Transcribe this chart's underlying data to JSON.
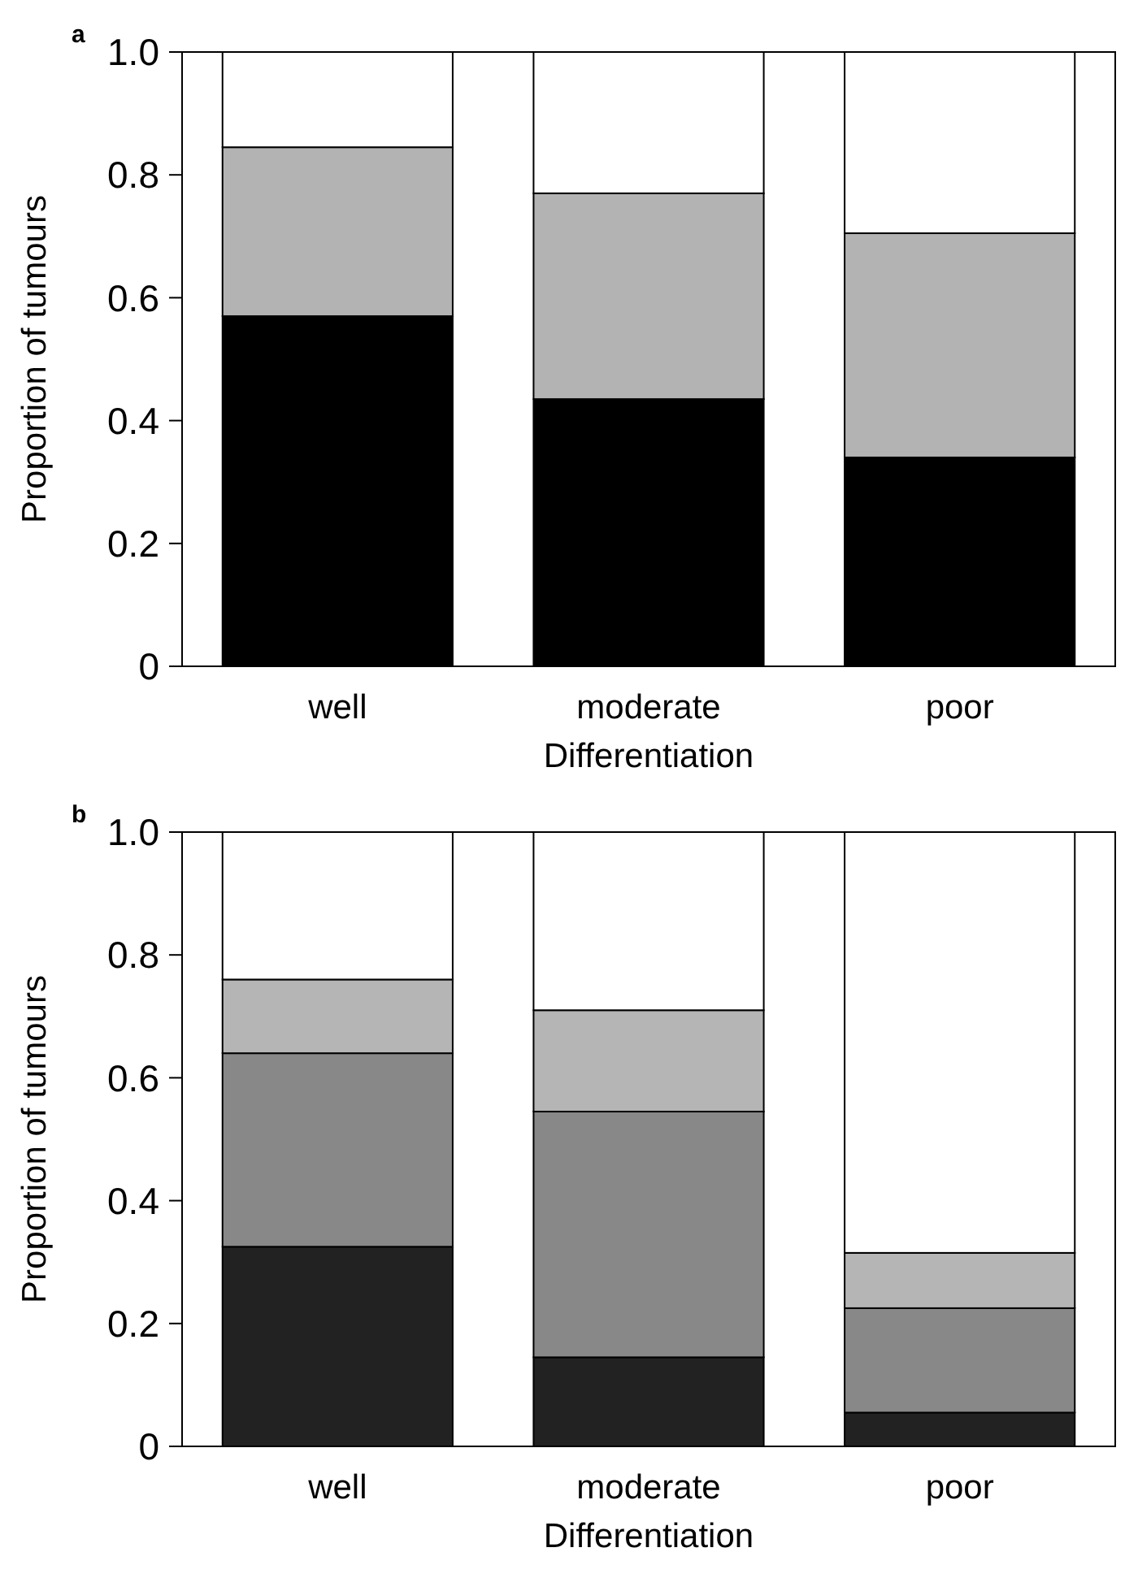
{
  "chart_data": [
    {
      "type": "bar",
      "title": "a",
      "stacked": true,
      "xlabel": "Differentiation",
      "ylabel": "Proportion of tumours",
      "categories": [
        "well",
        "moderate",
        "poor"
      ],
      "ylim": [
        0,
        1
      ],
      "yticks": [
        0,
        0.2,
        0.4,
        0.6,
        0.8,
        {
          "value": 1,
          "label": "1.0"
        }
      ],
      "series": [
        {
          "color": "#000000",
          "values": [
            0.57,
            0.435,
            0.34
          ]
        },
        {
          "color": "#b3b3b3",
          "values": [
            0.275,
            0.335,
            0.365
          ]
        },
        {
          "color": "#ffffff",
          "values": [
            0.155,
            0.23,
            0.295
          ]
        }
      ]
    },
    {
      "type": "bar",
      "title": "b",
      "stacked": true,
      "xlabel": "Differentiation",
      "ylabel": "Proportion of tumours",
      "categories": [
        "well",
        "moderate",
        "poor"
      ],
      "ylim": [
        0,
        1
      ],
      "yticks": [
        0,
        0.2,
        0.4,
        0.6,
        0.8,
        {
          "value": 1,
          "label": "1.0"
        }
      ],
      "series": [
        {
          "color": "#222222",
          "values": [
            0.325,
            0.145,
            0.055
          ]
        },
        {
          "color": "#888888",
          "values": [
            0.315,
            0.4,
            0.17
          ]
        },
        {
          "color": "#b5b5b5",
          "values": [
            0.12,
            0.165,
            0.09
          ]
        },
        {
          "color": "#ffffff",
          "values": [
            0.24,
            0.29,
            0.685
          ]
        }
      ]
    }
  ]
}
